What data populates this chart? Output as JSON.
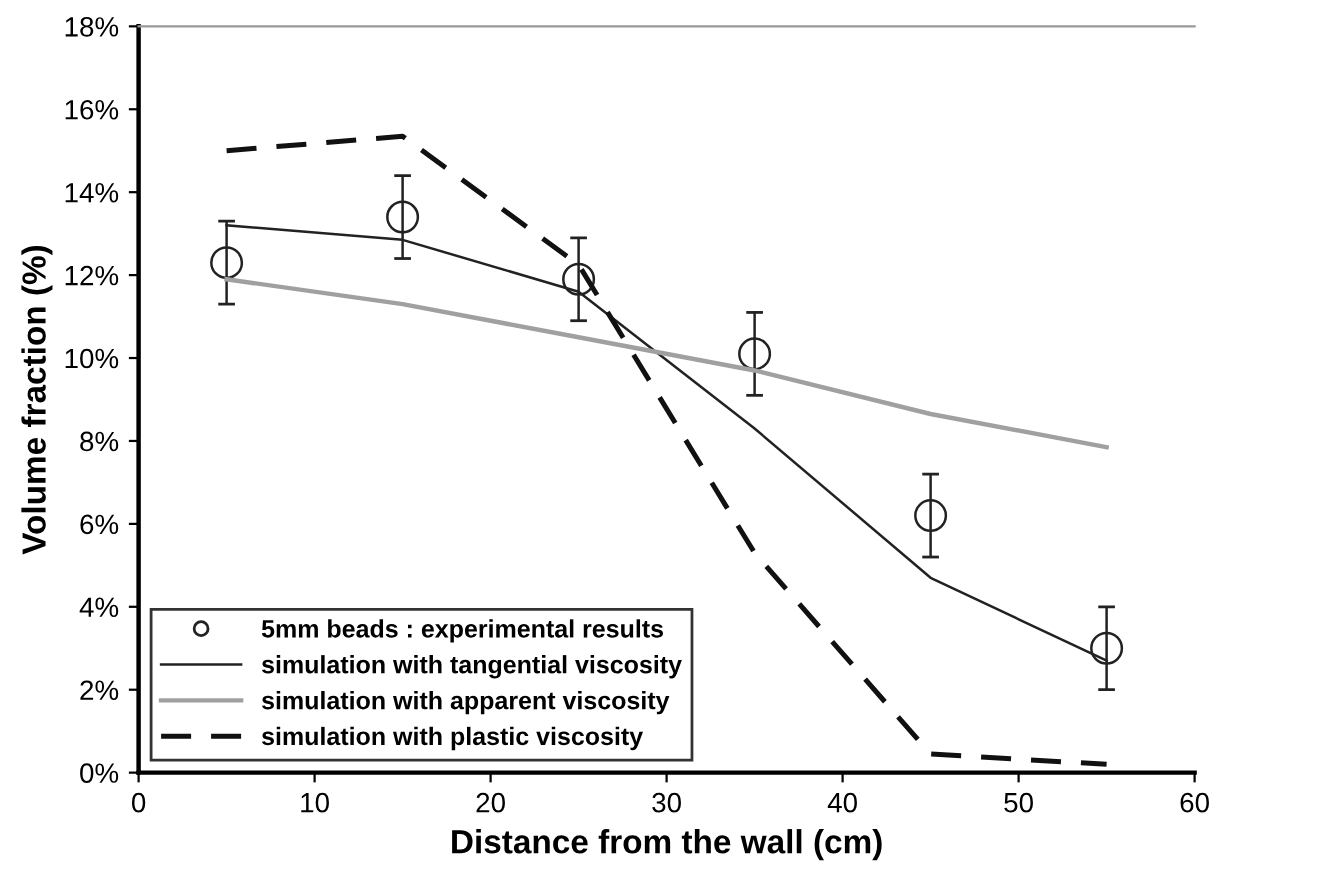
{
  "chart_data": {
    "type": "line",
    "xlabel": "Distance from the wall (cm)",
    "ylabel": "Volume fraction (%)",
    "x": [
      5,
      15,
      25,
      35,
      45,
      55
    ],
    "series": [
      {
        "name": "5mm beads : experimental results",
        "type": "scatter",
        "marker": "circle",
        "color": "#222222",
        "values": [
          12.3,
          13.4,
          11.9,
          10.1,
          6.2,
          3.0
        ],
        "errors": [
          1,
          1,
          1,
          1,
          1,
          1
        ]
      },
      {
        "name": "simulation with tangential viscosity",
        "color": "#222222",
        "line_style": "solid",
        "values": [
          13.2,
          12.85,
          11.6,
          8.3,
          4.7,
          2.7
        ]
      },
      {
        "name": "simulation with apparent viscosity",
        "color": "#a0a0a0",
        "line_style": "solid",
        "values": [
          11.9,
          11.3,
          10.5,
          9.7,
          8.65,
          7.85
        ]
      },
      {
        "name": "simulation with plastic viscosity",
        "color": "#111111",
        "line_style": "dashed",
        "values": [
          15.0,
          15.35,
          12.25,
          5.3,
          0.45,
          0.2
        ]
      }
    ],
    "xlim": [
      0,
      60
    ],
    "xticks": [
      0,
      10,
      20,
      30,
      40,
      50,
      60
    ],
    "ylim": [
      0,
      18
    ],
    "yticks": [
      {
        "value": 0,
        "label": "0%"
      },
      {
        "value": 2,
        "label": "2%"
      },
      {
        "value": 4,
        "label": "4%"
      },
      {
        "value": 6,
        "label": "6%"
      },
      {
        "value": 8,
        "label": "8%"
      },
      {
        "value": 10,
        "label": "10%"
      },
      {
        "value": 12,
        "label": "12%"
      },
      {
        "value": 14,
        "label": "14%"
      },
      {
        "value": 16,
        "label": "16%"
      },
      {
        "value": 18,
        "label": "18%"
      }
    ],
    "grid": false,
    "legend": "bottom left"
  }
}
